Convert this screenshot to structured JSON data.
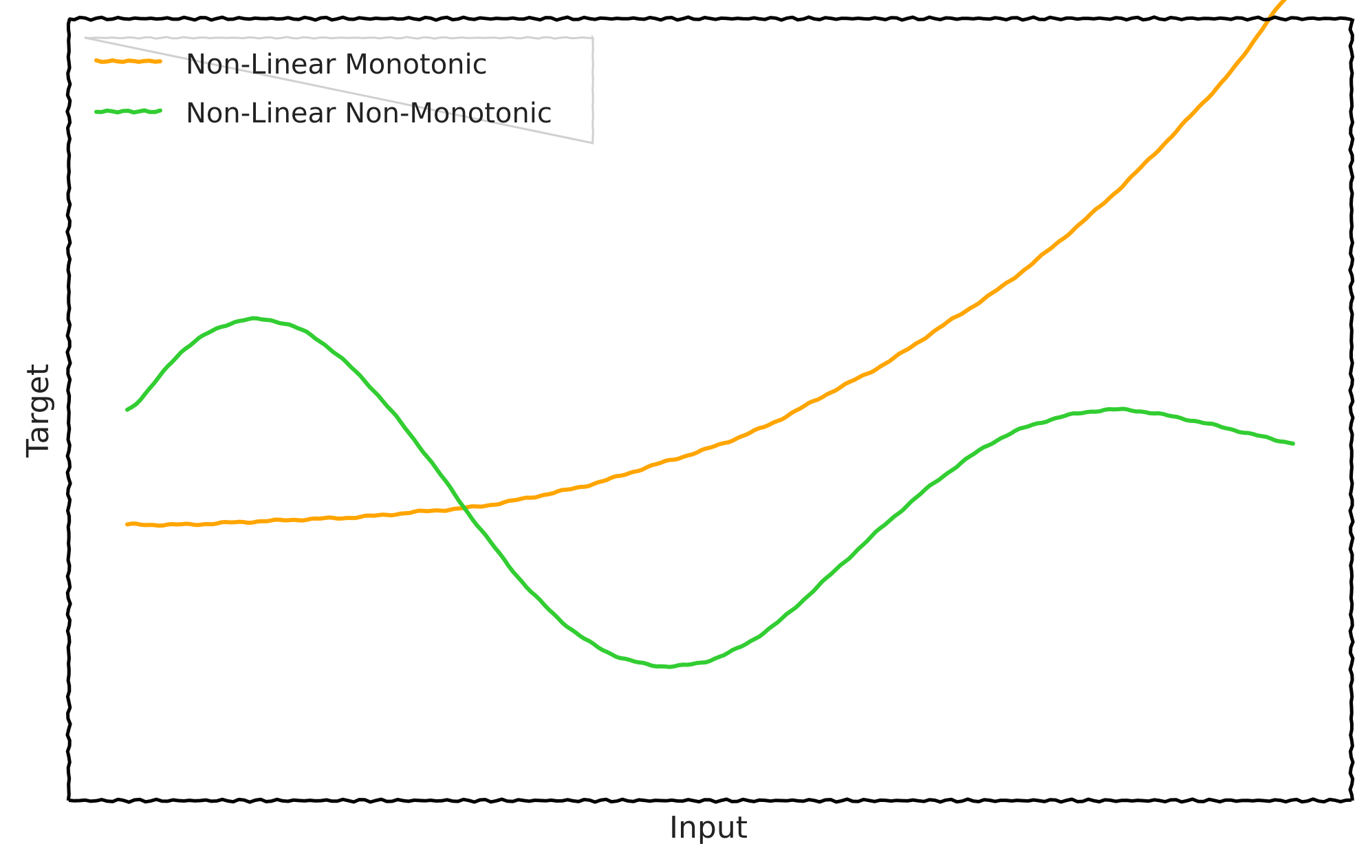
{
  "chart_data": {
    "type": "line",
    "title": "",
    "xlabel": "Input",
    "ylabel": "Target",
    "xlim": [
      0,
      1
    ],
    "ylim": [
      -1.53,
      1.53
    ],
    "grid": false,
    "legend_position": "top-left",
    "series": [
      {
        "name": "Non-Linear Monotonic",
        "color": "#FFA500",
        "x": [
          0,
          0.05,
          0.1,
          0.15,
          0.2,
          0.25,
          0.3,
          0.35,
          0.4,
          0.45,
          0.5,
          0.55,
          0.6,
          0.65,
          0.7,
          0.75,
          0.8,
          0.85,
          0.9,
          0.95,
          1.0
        ],
        "y": [
          -0.45,
          -0.45,
          -0.44,
          -0.43,
          -0.42,
          -0.4,
          -0.38,
          -0.34,
          -0.29,
          -0.22,
          -0.15,
          -0.06,
          0.06,
          0.18,
          0.33,
          0.48,
          0.66,
          0.86,
          1.09,
          1.34,
          1.63
        ]
      },
      {
        "name": "Non-Linear Non-Monotonic",
        "color": "#32CD32",
        "x": [
          0,
          0.05,
          0.1,
          0.15,
          0.2,
          0.25,
          0.3,
          0.35,
          0.4,
          0.45,
          0.5,
          0.55,
          0.6,
          0.65,
          0.7,
          0.75,
          0.8,
          0.85,
          0.9,
          0.95,
          1.0
        ],
        "y": [
          0.0,
          0.24,
          0.35,
          0.31,
          0.13,
          -0.14,
          -0.45,
          -0.73,
          -0.92,
          -1.0,
          -0.98,
          -0.86,
          -0.66,
          -0.45,
          -0.26,
          -0.11,
          -0.03,
          -0.0,
          -0.03,
          -0.08,
          -0.13
        ]
      }
    ]
  }
}
